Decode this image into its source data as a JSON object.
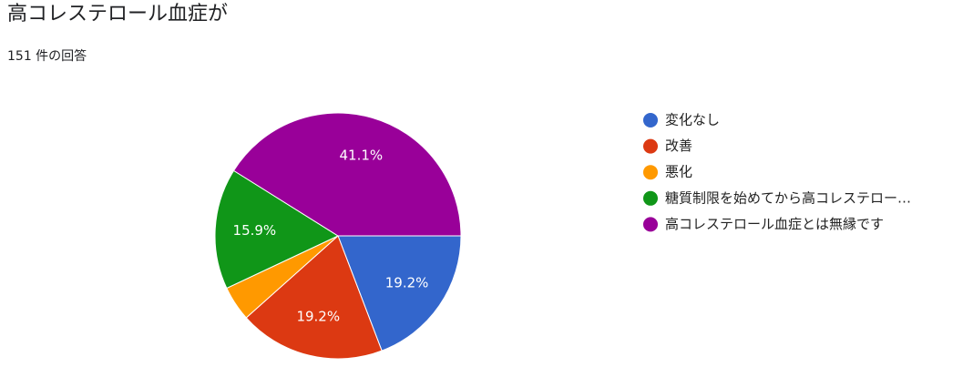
{
  "chart_data": {
    "type": "pie",
    "title": "高コレステロール血症が",
    "subtitle": "151 件の回答",
    "categories": [
      "変化なし",
      "改善",
      "悪化",
      "糖質制限を始めてから高コレステロー…",
      "高コレステロール血症とは無縁です"
    ],
    "values": [
      19.2,
      19.2,
      4.6,
      15.9,
      41.1
    ],
    "value_labels": [
      "19.2%",
      "19.2%",
      null,
      "15.9%",
      "41.1%"
    ],
    "colors": [
      "#3366cc",
      "#dc3912",
      "#ff9900",
      "#109618",
      "#990099"
    ],
    "legend": "right"
  }
}
